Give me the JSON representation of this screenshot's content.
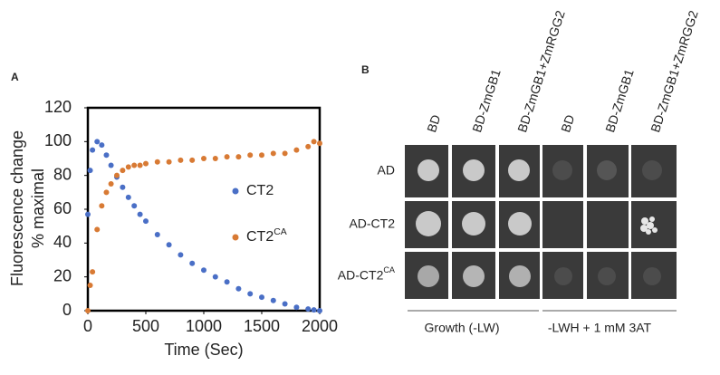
{
  "chart_data": {
    "type": "scatter",
    "panel_label": "A",
    "ylabel": [
      "Fluorescence change",
      "% maximal"
    ],
    "xlabel": "Time (Sec)",
    "xlim": [
      0,
      2000
    ],
    "xticks": [
      0,
      500,
      1000,
      1500,
      2000
    ],
    "ylim": [
      0,
      120
    ],
    "yticks": [
      0,
      20,
      40,
      60,
      80,
      100,
      120
    ],
    "series": [
      {
        "name": "CT2",
        "color": "#4a6fc6",
        "x": [
          0,
          20,
          40,
          80,
          120,
          160,
          200,
          250,
          300,
          350,
          400,
          450,
          500,
          600,
          700,
          800,
          900,
          1000,
          1100,
          1200,
          1300,
          1400,
          1500,
          1600,
          1700,
          1800,
          1900,
          1950,
          2000
        ],
        "values": [
          57,
          83,
          95,
          100,
          98,
          92,
          86,
          79,
          73,
          67,
          62,
          57,
          53,
          45,
          39,
          33,
          28,
          24,
          20,
          17,
          13,
          10,
          8,
          6,
          4,
          2,
          1,
          0.5,
          0
        ]
      },
      {
        "name": "CT2",
        "name_superscript": "CA",
        "color": "#d87a34",
        "x": [
          0,
          20,
          40,
          80,
          120,
          160,
          200,
          250,
          300,
          350,
          400,
          450,
          500,
          600,
          700,
          800,
          900,
          1000,
          1100,
          1200,
          1300,
          1400,
          1500,
          1600,
          1700,
          1800,
          1900,
          1950,
          2000
        ],
        "values": [
          0,
          15,
          23,
          48,
          62,
          70,
          75,
          80,
          83,
          85,
          86,
          86,
          87,
          88,
          88,
          89,
          89,
          90,
          90,
          91,
          91,
          92,
          92,
          93,
          93,
          95,
          97,
          100,
          99
        ]
      }
    ]
  },
  "panel_b": {
    "panel_label": "B",
    "columns": [
      "BD",
      "BD-ZmGB1",
      "BD-ZmGB1+ZmRGG2",
      "BD",
      "BD-ZmGB1",
      "BD-ZmGB1+ZmRGG2"
    ],
    "rows": [
      {
        "text": "AD"
      },
      {
        "text": "AD-CT2"
      },
      {
        "text": "AD-CT2",
        "superscript": "CA"
      }
    ],
    "groups": [
      "Growth (-LW)",
      "-LWH + 1 mM  3AT"
    ]
  }
}
